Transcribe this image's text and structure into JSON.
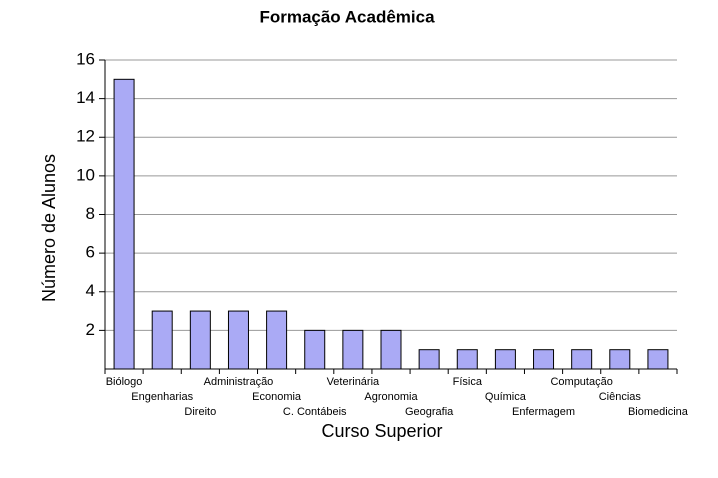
{
  "chart_data": {
    "type": "bar",
    "title": "Formação Acadêmica",
    "x_label": "Curso Superior",
    "y_label": "Número de Alunos",
    "categories": [
      "Biólogo",
      "Engenharias",
      "Direito",
      "Administração",
      "Economia",
      "C. Contábeis",
      "Veterinária",
      "Agronomia",
      "Geografia",
      "Física",
      "Química",
      "Enfermagem",
      "Computação",
      "Ciências",
      "Biomedicina"
    ],
    "values": [
      15,
      3,
      3,
      3,
      3,
      2,
      2,
      2,
      1,
      1,
      1,
      1,
      1,
      1,
      1
    ],
    "color": "#aaaaf5",
    "ylim": [
      0,
      16
    ],
    "yticks": [
      2,
      4,
      6,
      8,
      10,
      12,
      14,
      16
    ],
    "grid": true
  }
}
